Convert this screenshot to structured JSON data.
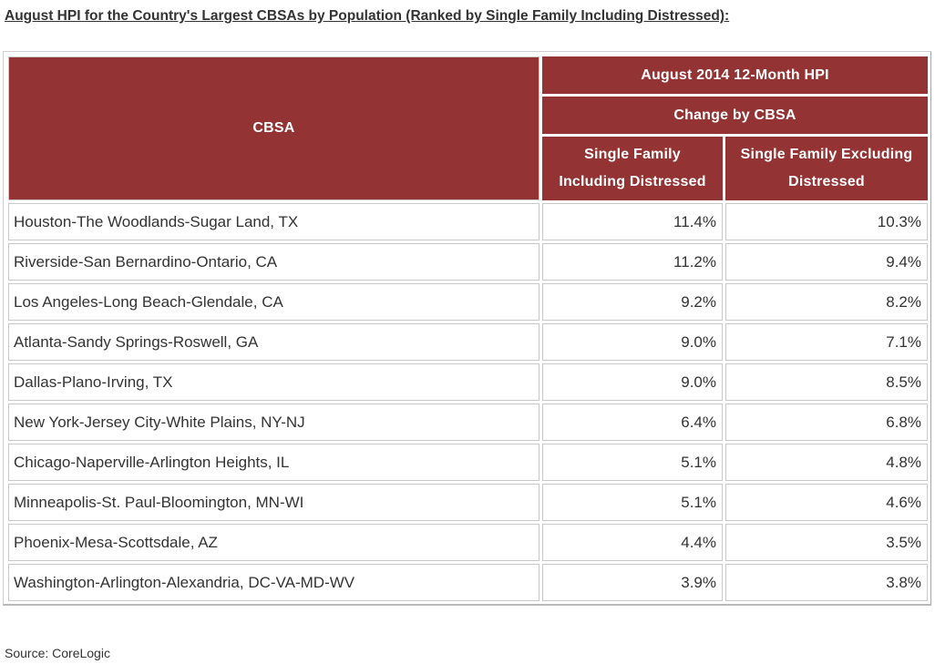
{
  "title": "August HPI for the Country's Largest CBSAs by Population (Ranked by Single Family Including Distressed):",
  "table": {
    "header": {
      "cbsa": "CBSA",
      "group_top": "August 2014 12-Month HPI",
      "group_mid": "Change by CBSA",
      "col1_line1": "Single Family",
      "col1_line2": "Including Distressed",
      "col2_line1": "Single Family Excluding",
      "col2_line2": "Distressed"
    },
    "rows": [
      {
        "cbsa": "Houston-The Woodlands-Sugar Land, TX",
        "incl": "11.4%",
        "excl": "10.3%"
      },
      {
        "cbsa": "Riverside-San Bernardino-Ontario, CA",
        "incl": "11.2%",
        "excl": "9.4%"
      },
      {
        "cbsa": "Los Angeles-Long Beach-Glendale, CA",
        "incl": "9.2%",
        "excl": "8.2%"
      },
      {
        "cbsa": "Atlanta-Sandy Springs-Roswell, GA",
        "incl": "9.0%",
        "excl": "7.1%"
      },
      {
        "cbsa": "Dallas-Plano-Irving, TX",
        "incl": "9.0%",
        "excl": "8.5%"
      },
      {
        "cbsa": "New York-Jersey City-White Plains, NY-NJ",
        "incl": "6.4%",
        "excl": "6.8%"
      },
      {
        "cbsa": "Chicago-Naperville-Arlington Heights, IL",
        "incl": "5.1%",
        "excl": "4.8%"
      },
      {
        "cbsa": "Minneapolis-St. Paul-Bloomington, MN-WI",
        "incl": "5.1%",
        "excl": "4.6%"
      },
      {
        "cbsa": "Phoenix-Mesa-Scottsdale, AZ",
        "incl": "4.4%",
        "excl": "3.5%"
      },
      {
        "cbsa": "Washington-Arlington-Alexandria, DC-VA-MD-WV",
        "incl": "3.9%",
        "excl": "3.8%"
      }
    ]
  },
  "source": "Source: CoreLogic",
  "colors": {
    "header_bg": "#933333",
    "header_text": "#ffffff",
    "body_text": "#333333",
    "cell_border": "#c9c9c9"
  }
}
